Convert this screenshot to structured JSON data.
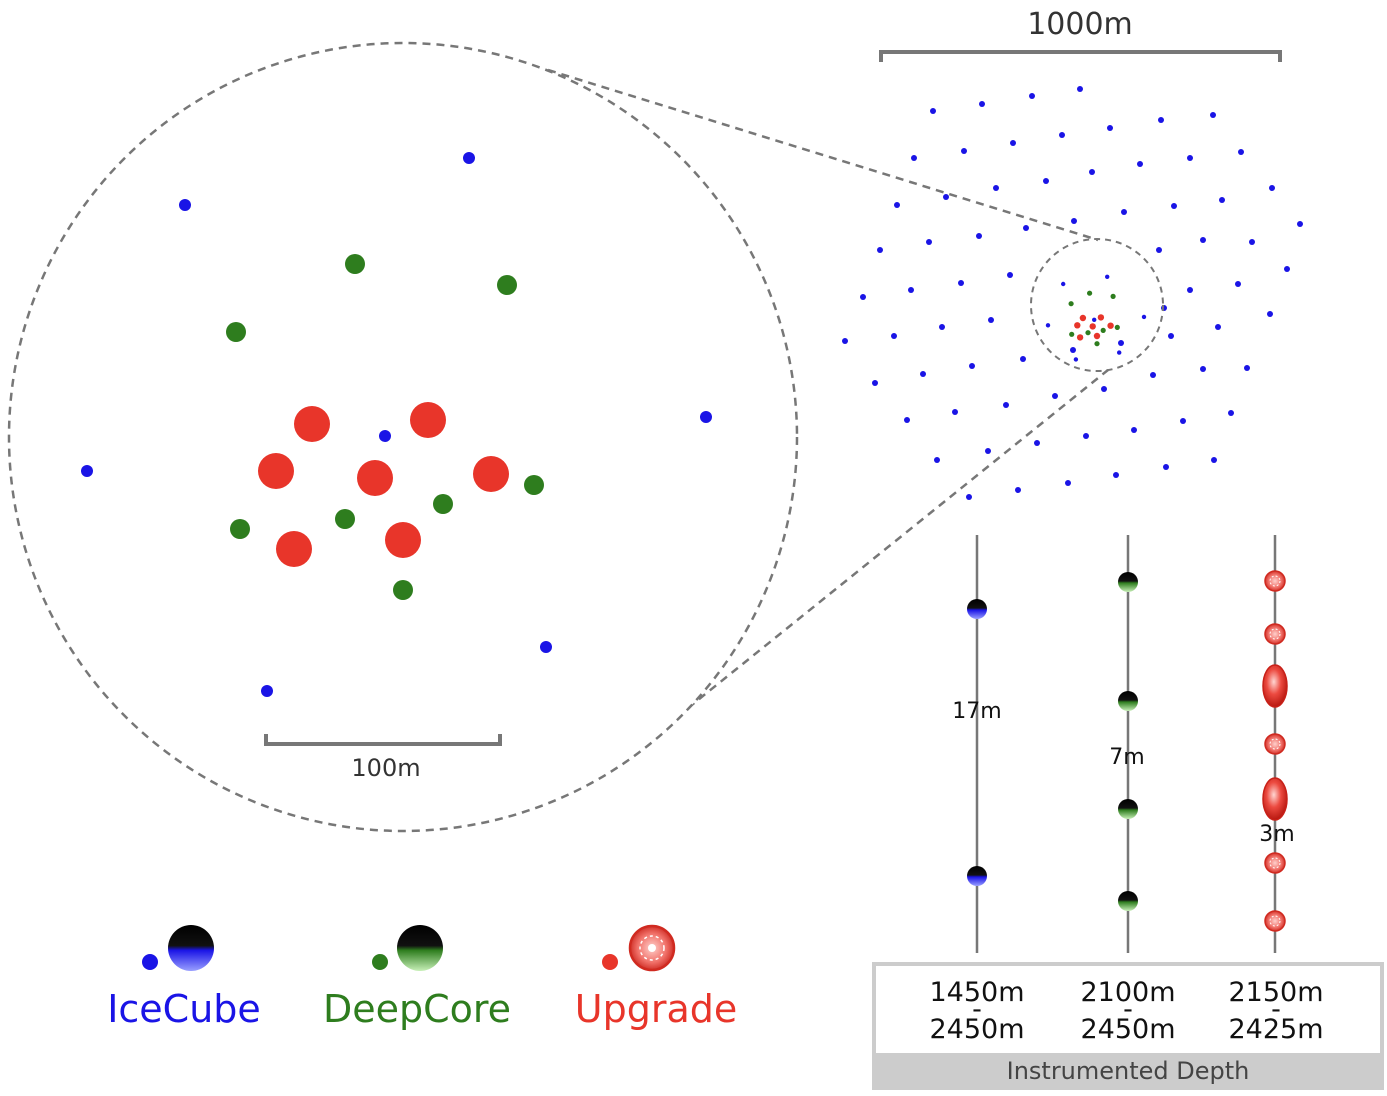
{
  "scale_bars": {
    "top": "1000m",
    "zoom": "100m"
  },
  "legend": [
    {
      "label": "IceCube",
      "color": "#1a14e6"
    },
    {
      "label": "DeepCore",
      "color": "#2e7d1e"
    },
    {
      "label": "Upgrade",
      "color": "#e8352a"
    }
  ],
  "strings": [
    {
      "spacing": "17m",
      "depth_top": "1450m",
      "depth_bottom": "2450m",
      "color": "#1a14e6"
    },
    {
      "spacing": "7m",
      "depth_top": "2100m",
      "depth_bottom": "2450m",
      "color": "#2e7d1e"
    },
    {
      "spacing": "3m",
      "depth_top": "2150m",
      "depth_bottom": "2425m",
      "color": "#e8352a"
    }
  ],
  "depth_caption": "Instrumented Depth"
}
